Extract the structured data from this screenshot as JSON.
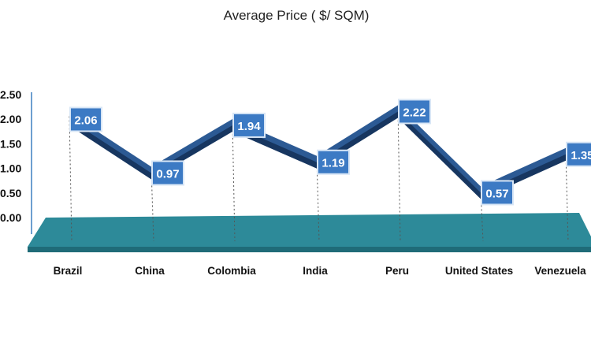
{
  "chart_data": {
    "type": "line",
    "title": "Average Price ( $/ SQM)",
    "categories": [
      "Brazil",
      "China",
      "Colombia",
      "India",
      "Peru",
      "United States",
      "Venezuela"
    ],
    "values": [
      2.06,
      0.97,
      1.94,
      1.19,
      2.22,
      0.57,
      1.35
    ],
    "y_ticks": [
      "2.50",
      "2.00",
      "1.50",
      "1.00",
      "0.50",
      "0.00"
    ],
    "ylim": [
      0,
      2.5
    ],
    "grid": false,
    "legend": "none",
    "colors": {
      "line_top": "#2c5a94",
      "line_side": "#173660",
      "floor": "#2d8a99",
      "label_bg": "#3c7ac4",
      "label_border": "#d8e6f6",
      "axis": "#6d9fd0"
    }
  }
}
